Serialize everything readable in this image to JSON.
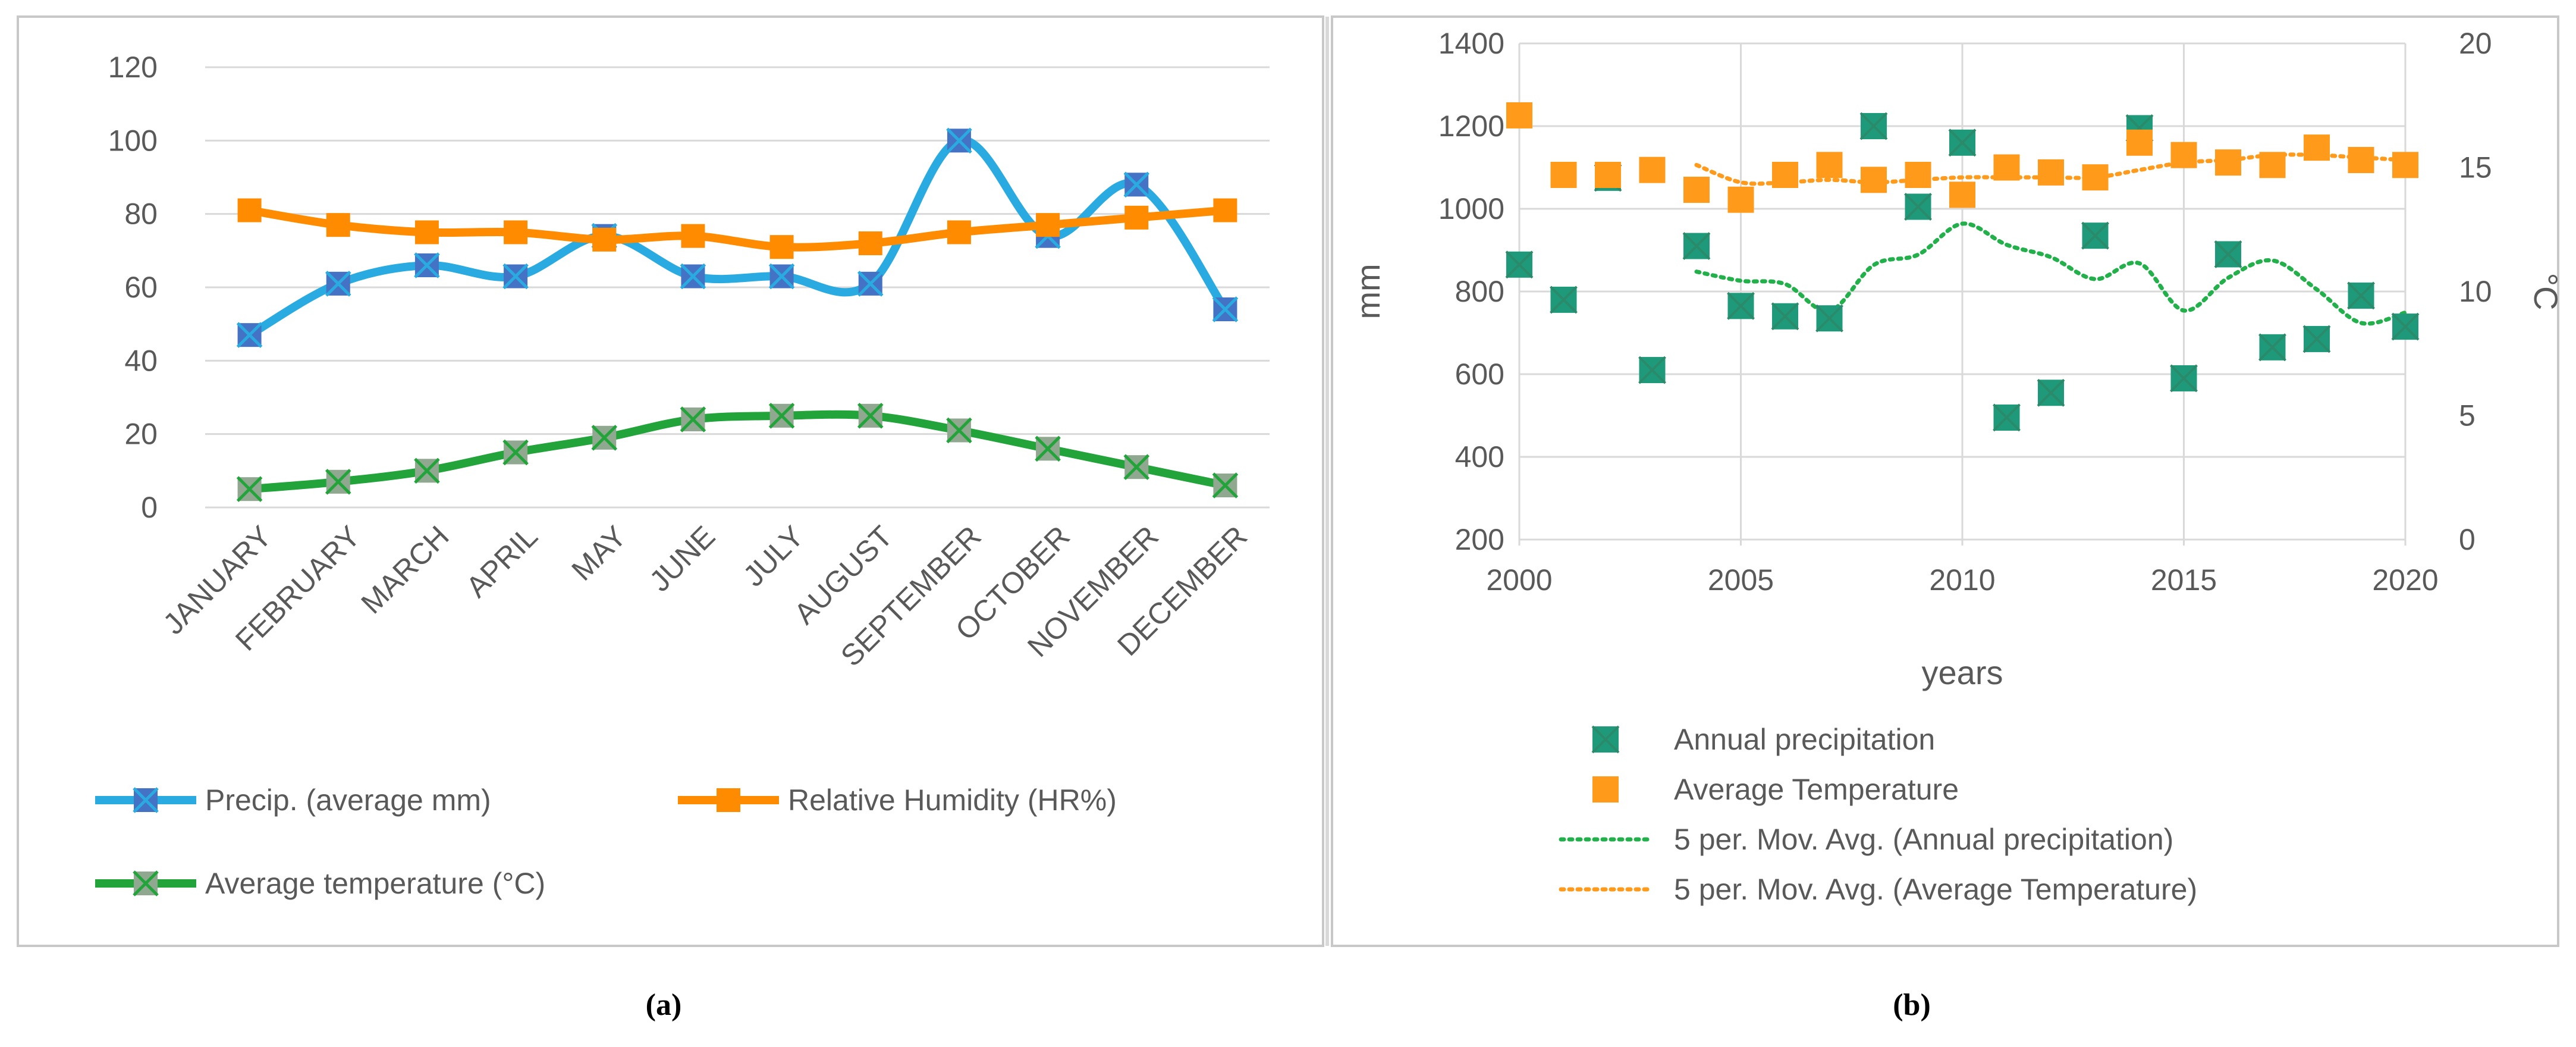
{
  "chart_data": [
    {
      "panel_label": "(a)",
      "type": "line",
      "categories": [
        "JANUARY",
        "FEBRUARY",
        "MARCH",
        "APRIL",
        "MAY",
        "JUNE",
        "JULY",
        "AUGUST",
        "SEPTEMBER",
        "OCTOBER",
        "NOVEMBER",
        "DECEMBER"
      ],
      "ylim": [
        0,
        120
      ],
      "yticks": [
        "0",
        "20",
        "40",
        "60",
        "80",
        "100",
        "120"
      ],
      "grid": true,
      "legend_position": "bottom",
      "series": [
        {
          "name": "Precip. (average mm)",
          "color": "#29ABE2",
          "marker_color": "#4472C4",
          "values": [
            47,
            61,
            66,
            63,
            74,
            63,
            63,
            61,
            100,
            74,
            88,
            54
          ]
        },
        {
          "name": "Relative Humidity (HR%)",
          "color": "#FF8C00",
          "marker_color": "#FF8C00",
          "values": [
            81,
            77,
            75,
            75,
            73,
            74,
            71,
            72,
            75,
            77,
            79,
            81
          ]
        },
        {
          "name": "Average temperature (°C)",
          "color": "#22A43A",
          "marker_color": "#8FA88F",
          "values": [
            5,
            7,
            10,
            15,
            19,
            24,
            25,
            25,
            21,
            16,
            11,
            6
          ]
        }
      ]
    },
    {
      "panel_label": "(b)",
      "type": "scatter",
      "xlabel": "years",
      "ylabel": "mm",
      "ylabel_right": "°C",
      "xlim": [
        2000,
        2020
      ],
      "xticks": [
        "2000",
        "2005",
        "2010",
        "2015",
        "2020"
      ],
      "ylim": [
        200,
        1400
      ],
      "yticks": [
        "200",
        "400",
        "600",
        "800",
        "1000",
        "1200",
        "1400"
      ],
      "ylim_right": [
        0,
        20
      ],
      "yticks_right": [
        "0",
        "5",
        "10",
        "15",
        "20"
      ],
      "grid": true,
      "legend_position": "bottom",
      "series": [
        {
          "name": "Annual precipitation",
          "axis": "left",
          "color": "#1E9A7A",
          "x": [
            2000,
            2001,
            2002,
            2003,
            2004,
            2005,
            2006,
            2007,
            2008,
            2009,
            2010,
            2011,
            2012,
            2013,
            2014,
            2015,
            2016,
            2017,
            2018,
            2019,
            2020
          ],
          "y": [
            865,
            780,
            1075,
            610,
            910,
            765,
            740,
            735,
            1200,
            1005,
            1160,
            495,
            555,
            935,
            1195,
            590,
            890,
            665,
            685,
            790,
            715
          ]
        },
        {
          "name": "Average Temperature",
          "axis": "right",
          "color": "#FF9A1A",
          "x": [
            2000,
            2001,
            2002,
            2003,
            2004,
            2005,
            2006,
            2007,
            2008,
            2009,
            2010,
            2011,
            2012,
            2013,
            2014,
            2015,
            2016,
            2017,
            2018,
            2019,
            2020
          ],
          "y": [
            17.1,
            14.7,
            14.7,
            14.9,
            14.1,
            13.7,
            14.7,
            15.1,
            14.5,
            14.7,
            13.9,
            15.0,
            14.8,
            14.6,
            16.0,
            15.5,
            15.2,
            15.1,
            15.8,
            15.3,
            15.1
          ]
        },
        {
          "name": "5 per. Mov. Avg. (Annual precipitation)",
          "axis": "left",
          "color": "#22B04A",
          "style": "dotted",
          "x": [
            2004,
            2005,
            2006,
            2007,
            2008,
            2009,
            2010,
            2011,
            2012,
            2013,
            2014,
            2015,
            2016,
            2017,
            2018,
            2019,
            2020
          ],
          "y": [
            848,
            826,
            818,
            753,
            864,
            889,
            964,
            913,
            883,
            830,
            868,
            754,
            833,
            875,
            805,
            724,
            749
          ]
        },
        {
          "name": "5 per. Mov. Avg. (Average Temperature)",
          "axis": "right",
          "color": "#FF9A1A",
          "style": "dotted",
          "x": [
            2004,
            2005,
            2006,
            2007,
            2008,
            2009,
            2010,
            2011,
            2012,
            2013,
            2014,
            2015,
            2016,
            2017,
            2018,
            2019,
            2020
          ],
          "y": [
            15.1,
            14.4,
            14.4,
            14.5,
            14.4,
            14.5,
            14.6,
            14.6,
            14.6,
            14.6,
            14.9,
            15.2,
            15.3,
            15.5,
            15.5,
            15.4,
            15.3
          ]
        }
      ]
    }
  ]
}
